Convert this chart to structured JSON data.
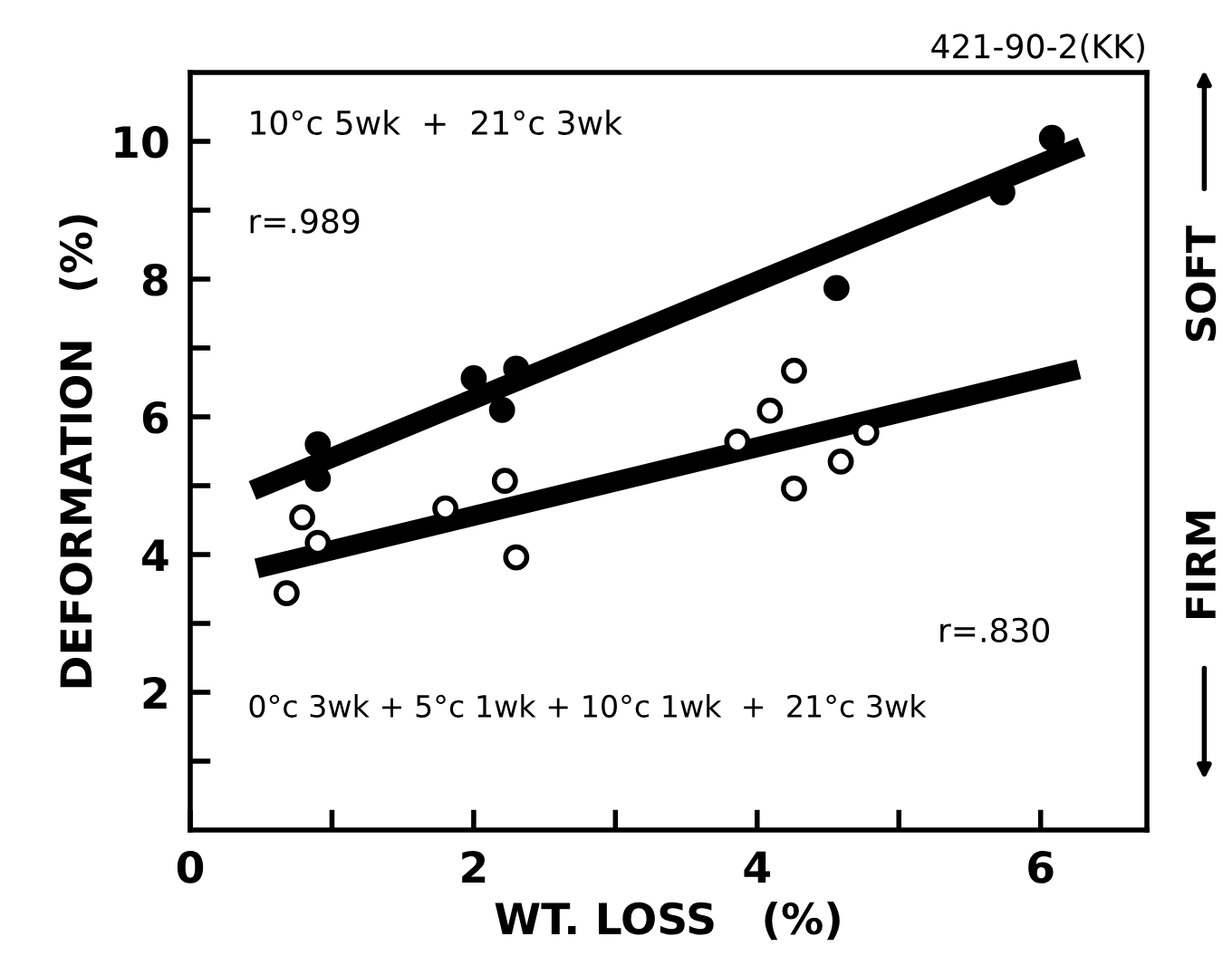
{
  "chart_data": {
    "type": "scatter",
    "xlabel": "WT. LOSS   (%)",
    "ylabel": "DEFORMATION   (%)",
    "xlim": [
      0,
      6.75
    ],
    "ylim": [
      0,
      11
    ],
    "xticks": [
      0,
      {
        "value": 1,
        "label": null
      },
      2,
      {
        "value": 3,
        "label": null
      },
      4,
      {
        "value": 5,
        "label": null
      },
      6
    ],
    "yticks": [
      {
        "value": 1,
        "label": null
      },
      2,
      {
        "value": 3,
        "label": null
      },
      4,
      {
        "value": 5,
        "label": null
      },
      6,
      {
        "value": 7,
        "label": null
      },
      8,
      {
        "value": 9,
        "label": null
      },
      10
    ],
    "grid": false,
    "series": [
      {
        "marker": "circle",
        "color": "#000000",
        "x": [
          0.9,
          0.9,
          2.0,
          2.2,
          2.3,
          4.56,
          5.73,
          6.08
        ],
        "values": [
          5.6,
          5.1,
          6.56,
          6.1,
          6.7,
          7.87,
          9.26,
          10.05
        ]
      },
      {
        "marker": "circle",
        "color": "#ffffff",
        "x": [
          0.68,
          0.79,
          0.9,
          1.8,
          2.22,
          2.3,
          3.86,
          4.09,
          4.26,
          4.26,
          4.59,
          4.77
        ],
        "values": [
          3.44,
          4.54,
          4.17,
          4.67,
          5.07,
          3.96,
          5.64,
          6.09,
          6.67,
          4.96,
          5.35,
          5.77
        ]
      },
      {
        "type": "line",
        "color": "#000000",
        "x": [
          0.44,
          6.29
        ],
        "values": [
          4.93,
          9.92
        ]
      },
      {
        "type": "line",
        "color": "#000000",
        "x": [
          0.47,
          6.27
        ],
        "values": [
          3.8,
          6.69
        ]
      }
    ],
    "annotations": [
      "10°c 5wk  +  21°c 3wk",
      "r=.989",
      "r=.830",
      "0°c 3wk + 5°c 1wk + 10°c 1wk  +  21°c 3wk",
      "421-90-2(KK)",
      "SOFT",
      "FIRM"
    ]
  }
}
